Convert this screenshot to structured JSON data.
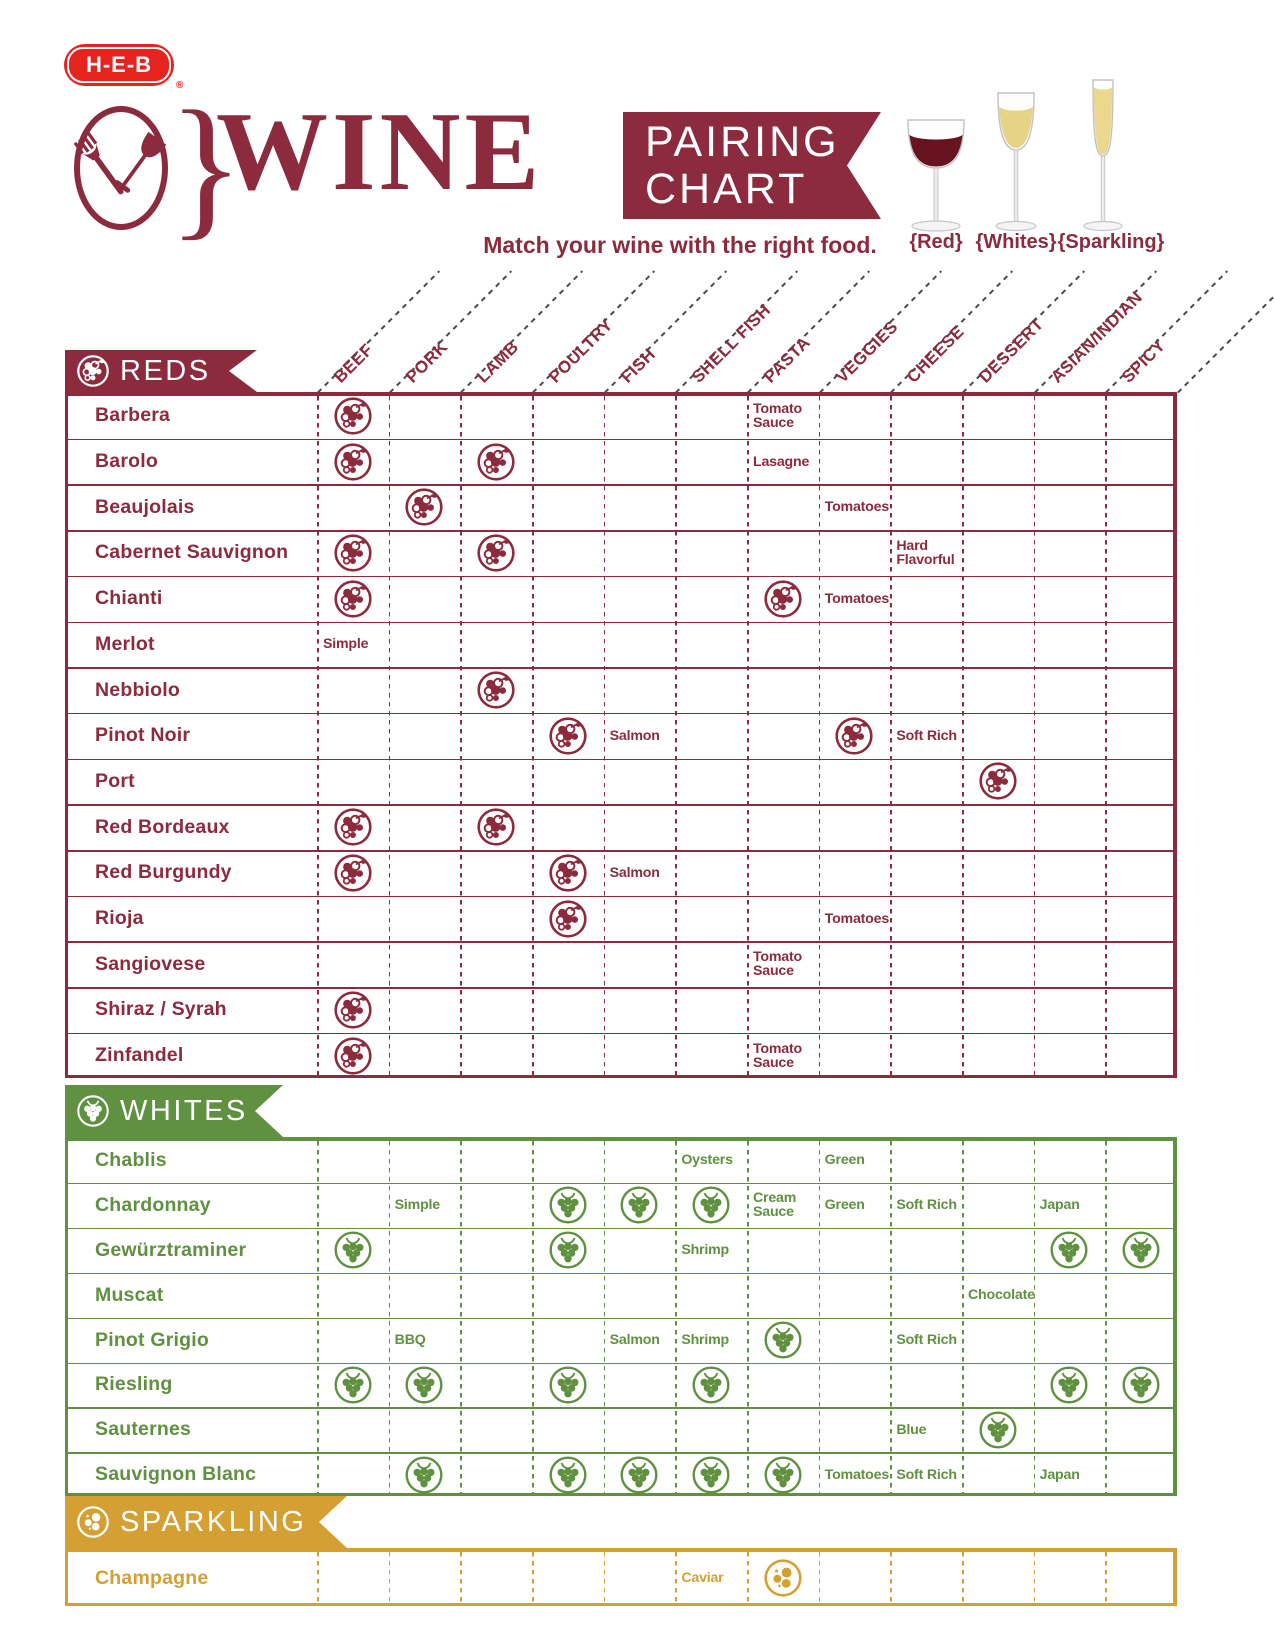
{
  "logo": {
    "text": "H-E-B",
    "registered": "®"
  },
  "title": {
    "brace": "}",
    "wine": "WINE",
    "banner_line1": "PAIRING",
    "banner_line2": "CHART",
    "tagline": "Match your wine with the right food."
  },
  "glasses": [
    {
      "label": "{Red}",
      "type": "red-wine-glass"
    },
    {
      "label": "{Whites}",
      "type": "white-wine-glass"
    },
    {
      "label": "{Sparkling}",
      "type": "champagne-flute"
    }
  ],
  "colors": {
    "maroon": "#8c2b3d",
    "green": "#5f9140",
    "gold": "#d5a033",
    "heb_red": "#e5231f",
    "dash_gray": "#4a4a4a"
  },
  "chart_data": {
    "type": "table",
    "title": "WINE PAIRING CHART",
    "columns": [
      "BEEF",
      "PORK",
      "LAMB",
      "POULTRY",
      "FISH",
      "SHELL FISH",
      "PASTA",
      "VEGGIES",
      "CHEESE",
      "DESSERT",
      "ASIAN/INDIAN",
      "SPICY"
    ],
    "sections": [
      {
        "id": "reds",
        "label": "REDS",
        "icon": "red-grape",
        "color_key": "maroon",
        "rows": [
          {
            "name": "Barbera",
            "cells": [
              {
                "col": "BEEF",
                "mark": "grape"
              },
              {
                "col": "PASTA",
                "text": "Tomato\nSauce"
              }
            ]
          },
          {
            "name": "Barolo",
            "cells": [
              {
                "col": "BEEF",
                "mark": "grape"
              },
              {
                "col": "LAMB",
                "mark": "grape"
              },
              {
                "col": "PASTA",
                "text": "Lasagne"
              }
            ]
          },
          {
            "name": "Beaujolais",
            "cells": [
              {
                "col": "PORK",
                "mark": "grape"
              },
              {
                "col": "VEGGIES",
                "text": "Tomatoes"
              }
            ]
          },
          {
            "name": "Cabernet Sauvignon",
            "cells": [
              {
                "col": "BEEF",
                "mark": "grape"
              },
              {
                "col": "LAMB",
                "mark": "grape"
              },
              {
                "col": "CHEESE",
                "text": "Hard\nFlavorful"
              }
            ]
          },
          {
            "name": "Chianti",
            "cells": [
              {
                "col": "BEEF",
                "mark": "grape"
              },
              {
                "col": "PASTA",
                "mark": "grape"
              },
              {
                "col": "VEGGIES",
                "text": "Tomatoes"
              }
            ]
          },
          {
            "name": "Merlot",
            "cells": [
              {
                "col": "BEEF",
                "text": "Simple"
              }
            ]
          },
          {
            "name": "Nebbiolo",
            "cells": [
              {
                "col": "LAMB",
                "mark": "grape"
              }
            ]
          },
          {
            "name": "Pinot Noir",
            "cells": [
              {
                "col": "POULTRY",
                "mark": "grape"
              },
              {
                "col": "FISH",
                "text": "Salmon"
              },
              {
                "col": "VEGGIES",
                "mark": "grape"
              },
              {
                "col": "CHEESE",
                "text": "Soft Rich"
              }
            ]
          },
          {
            "name": "Port",
            "cells": [
              {
                "col": "DESSERT",
                "mark": "grape"
              }
            ]
          },
          {
            "name": "Red Bordeaux",
            "cells": [
              {
                "col": "BEEF",
                "mark": "grape"
              },
              {
                "col": "LAMB",
                "mark": "grape"
              }
            ]
          },
          {
            "name": "Red Burgundy",
            "cells": [
              {
                "col": "BEEF",
                "mark": "grape"
              },
              {
                "col": "POULTRY",
                "mark": "grape"
              },
              {
                "col": "FISH",
                "text": "Salmon"
              }
            ]
          },
          {
            "name": "Rioja",
            "cells": [
              {
                "col": "POULTRY",
                "mark": "grape"
              },
              {
                "col": "VEGGIES",
                "text": "Tomatoes"
              }
            ]
          },
          {
            "name": "Sangiovese",
            "cells": [
              {
                "col": "PASTA",
                "text": "Tomato\nSauce"
              }
            ]
          },
          {
            "name": "Shiraz / Syrah",
            "cells": [
              {
                "col": "BEEF",
                "mark": "grape"
              }
            ]
          },
          {
            "name": "Zinfandel",
            "cells": [
              {
                "col": "BEEF",
                "mark": "grape"
              },
              {
                "col": "PASTA",
                "text": "Tomato\nSauce"
              }
            ]
          }
        ]
      },
      {
        "id": "whites",
        "label": "WHITES",
        "icon": "white-grape",
        "color_key": "green",
        "rows": [
          {
            "name": "Chablis",
            "cells": [
              {
                "col": "SHELL FISH",
                "text": "Oysters"
              },
              {
                "col": "VEGGIES",
                "text": "Green"
              }
            ]
          },
          {
            "name": "Chardonnay",
            "cells": [
              {
                "col": "PORK",
                "text": "Simple"
              },
              {
                "col": "POULTRY",
                "mark": "grape"
              },
              {
                "col": "FISH",
                "mark": "grape"
              },
              {
                "col": "SHELL FISH",
                "mark": "grape"
              },
              {
                "col": "PASTA",
                "text": "Cream\nSauce"
              },
              {
                "col": "VEGGIES",
                "text": "Green"
              },
              {
                "col": "CHEESE",
                "text": "Soft Rich"
              },
              {
                "col": "ASIAN/INDIAN",
                "text": "Japan"
              }
            ]
          },
          {
            "name": "Gewürztraminer",
            "cells": [
              {
                "col": "BEEF",
                "mark": "grape"
              },
              {
                "col": "POULTRY",
                "mark": "grape"
              },
              {
                "col": "SHELL FISH",
                "text": "Shrimp"
              },
              {
                "col": "ASIAN/INDIAN",
                "mark": "grape"
              },
              {
                "col": "SPICY",
                "mark": "grape"
              }
            ]
          },
          {
            "name": "Muscat",
            "cells": [
              {
                "col": "DESSERT",
                "text": "Chocolate"
              }
            ]
          },
          {
            "name": "Pinot Grigio",
            "cells": [
              {
                "col": "PORK",
                "text": "BBQ"
              },
              {
                "col": "FISH",
                "text": "Salmon"
              },
              {
                "col": "SHELL FISH",
                "text": "Shrimp"
              },
              {
                "col": "PASTA",
                "mark": "grape"
              },
              {
                "col": "CHEESE",
                "text": "Soft Rich"
              }
            ]
          },
          {
            "name": "Riesling",
            "cells": [
              {
                "col": "BEEF",
                "mark": "grape"
              },
              {
                "col": "PORK",
                "mark": "grape"
              },
              {
                "col": "POULTRY",
                "mark": "grape"
              },
              {
                "col": "SHELL FISH",
                "mark": "grape"
              },
              {
                "col": "ASIAN/INDIAN",
                "mark": "grape"
              },
              {
                "col": "SPICY",
                "mark": "grape"
              }
            ]
          },
          {
            "name": "Sauternes",
            "cells": [
              {
                "col": "CHEESE",
                "text": "Blue"
              },
              {
                "col": "DESSERT",
                "mark": "grape"
              }
            ]
          },
          {
            "name": "Sauvignon Blanc",
            "cells": [
              {
                "col": "PORK",
                "mark": "grape"
              },
              {
                "col": "POULTRY",
                "mark": "grape"
              },
              {
                "col": "FISH",
                "mark": "grape"
              },
              {
                "col": "SHELL FISH",
                "mark": "grape"
              },
              {
                "col": "PASTA",
                "mark": "grape"
              },
              {
                "col": "VEGGIES",
                "text": "Tomatoes"
              },
              {
                "col": "CHEESE",
                "text": "Soft Rich"
              },
              {
                "col": "ASIAN/INDIAN",
                "text": "Japan"
              }
            ]
          }
        ]
      },
      {
        "id": "sparkling",
        "label": "SPARKLING",
        "icon": "bubbles",
        "color_key": "gold",
        "rows": [
          {
            "name": "Champagne",
            "cells": [
              {
                "col": "SHELL FISH",
                "text": "Caviar"
              },
              {
                "col": "PASTA",
                "mark": "grape"
              }
            ]
          }
        ]
      }
    ]
  }
}
